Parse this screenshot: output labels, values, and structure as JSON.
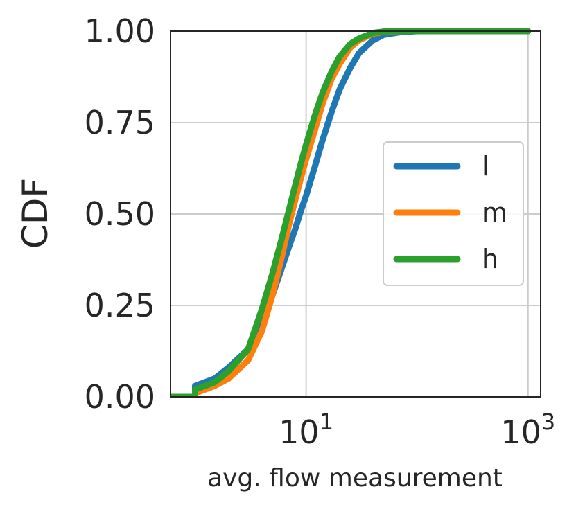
{
  "chart_data": {
    "type": "line",
    "title": "",
    "xlabel": "avg. flow measurement",
    "ylabel": "CDF",
    "xscale": "log",
    "xlim": [
      0.6,
      1300
    ],
    "ylim": [
      0,
      1
    ],
    "grid": true,
    "legend_position": "center-right",
    "x_ticks": [
      {
        "value": 10,
        "base": "10",
        "exp": "1"
      },
      {
        "value": 1000,
        "base": "10",
        "exp": "3"
      }
    ],
    "y_ticks": [
      {
        "value": 0,
        "label": "0.00"
      },
      {
        "value": 0.25,
        "label": "0.25"
      },
      {
        "value": 0.5,
        "label": "0.50"
      },
      {
        "value": 0.75,
        "label": "0.75"
      },
      {
        "value": 1,
        "label": "1.00"
      }
    ],
    "series": [
      {
        "name": "l",
        "color": "#1f77b4",
        "x": [
          0.6,
          1.0,
          1.0,
          1.5,
          2.0,
          3.0,
          4.0,
          5.0,
          6.0,
          7.0,
          8.0,
          9.0,
          10.0,
          12.0,
          14.0,
          17.0,
          20.0,
          25.0,
          30.0,
          40.0,
          50.0,
          70.0,
          100.0,
          200.0,
          1000.0
        ],
        "y": [
          0.0,
          0.0,
          0.03,
          0.05,
          0.08,
          0.13,
          0.2,
          0.28,
          0.35,
          0.41,
          0.46,
          0.51,
          0.55,
          0.63,
          0.7,
          0.78,
          0.84,
          0.9,
          0.94,
          0.975,
          0.99,
          0.997,
          1.0,
          1.0,
          1.0
        ]
      },
      {
        "name": "m",
        "color": "#ff7f0e",
        "x": [
          0.6,
          1.0,
          1.0,
          1.5,
          2.0,
          3.0,
          4.0,
          5.0,
          6.0,
          7.0,
          8.0,
          9.0,
          10.0,
          12.0,
          14.0,
          17.0,
          20.0,
          25.0,
          30.0,
          40.0,
          50.0,
          70.0,
          100.0,
          200.0,
          1000.0
        ],
        "y": [
          0.0,
          0.0,
          0.01,
          0.03,
          0.05,
          0.1,
          0.18,
          0.28,
          0.38,
          0.47,
          0.54,
          0.6,
          0.65,
          0.73,
          0.8,
          0.87,
          0.91,
          0.955,
          0.975,
          0.993,
          0.998,
          1.0,
          1.0,
          1.0,
          1.0
        ]
      },
      {
        "name": "h",
        "color": "#2ca02c",
        "x": [
          0.6,
          1.0,
          1.0,
          1.5,
          2.0,
          3.0,
          4.0,
          5.0,
          6.0,
          7.0,
          8.0,
          9.0,
          10.0,
          12.0,
          14.0,
          17.0,
          20.0,
          25.0,
          30.0,
          40.0,
          50.0,
          70.0,
          100.0,
          200.0,
          1000.0
        ],
        "y": [
          0.0,
          0.0,
          0.02,
          0.04,
          0.07,
          0.13,
          0.24,
          0.34,
          0.43,
          0.51,
          0.58,
          0.64,
          0.69,
          0.77,
          0.83,
          0.89,
          0.93,
          0.965,
          0.98,
          0.995,
          0.999,
          1.0,
          1.0,
          1.0,
          1.0
        ]
      }
    ]
  }
}
